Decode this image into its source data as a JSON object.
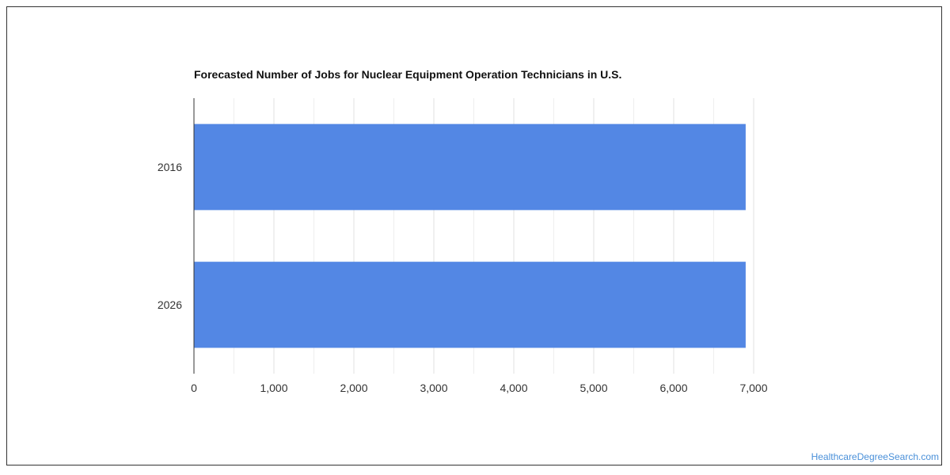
{
  "chart_data": {
    "type": "bar",
    "orientation": "horizontal",
    "title": "Forecasted Number of Jobs for Nuclear Equipment Operation Technicians in U.S.",
    "categories": [
      "2016",
      "2026"
    ],
    "values": [
      6900,
      6900
    ],
    "xlim": [
      0,
      7000
    ],
    "xticks": [
      0,
      1000,
      2000,
      3000,
      4000,
      5000,
      6000,
      7000
    ],
    "xtick_labels": [
      "0",
      "1,000",
      "2,000",
      "3,000",
      "4,000",
      "5,000",
      "6,000",
      "7,000"
    ],
    "grid": true,
    "legend": "none",
    "bar_color": "#5387e4"
  },
  "footer": {
    "watermark": "HealthcareDegreeSearch.com"
  },
  "colors": {
    "gridline": "#e0e0e0",
    "axis": "#333333",
    "watermark": "#4a90d9"
  }
}
